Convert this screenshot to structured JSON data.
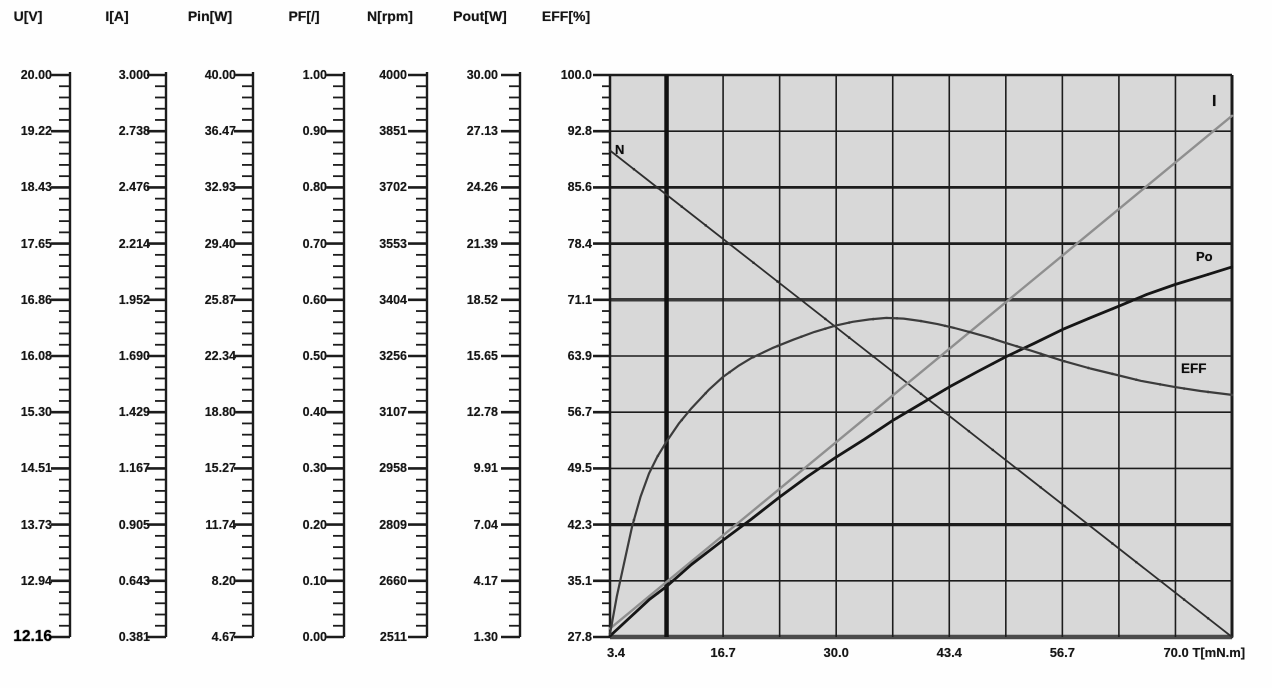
{
  "header_labels": [
    "U[V]",
    "I[A]",
    "Pin[W]",
    "PF[/]",
    "N[rpm]",
    "Pout[W]",
    "EFF[%]"
  ],
  "scales": [
    {
      "name": "U[V]",
      "ticks": [
        "20.00",
        "19.22",
        "18.43",
        "17.65",
        "16.86",
        "16.08",
        "15.30",
        "14.51",
        "13.73",
        "12.94",
        "12.16"
      ],
      "bold_last": true
    },
    {
      "name": "I[A]",
      "ticks": [
        "3.000",
        "2.738",
        "2.476",
        "2.214",
        "1.952",
        "1.690",
        "1.429",
        "1.167",
        "0.905",
        "0.643",
        "0.381"
      ],
      "bold_last": false
    },
    {
      "name": "Pin[W]",
      "ticks": [
        "40.00",
        "36.47",
        "32.93",
        "29.40",
        "25.87",
        "22.34",
        "18.80",
        "15.27",
        "11.74",
        "8.20",
        "4.67"
      ],
      "bold_last": false
    },
    {
      "name": "PF[/]",
      "ticks": [
        "1.00",
        "0.90",
        "0.80",
        "0.70",
        "0.60",
        "0.50",
        "0.40",
        "0.30",
        "0.20",
        "0.10",
        "0.00"
      ],
      "bold_last": false
    },
    {
      "name": "N[rpm]",
      "ticks": [
        "4000",
        "3851",
        "3702",
        "3553",
        "3404",
        "3256",
        "3107",
        "2958",
        "2809",
        "2660",
        "2511"
      ],
      "bold_last": false
    },
    {
      "name": "Pout[W]",
      "ticks": [
        "30.00",
        "27.13",
        "24.26",
        "21.39",
        "18.52",
        "15.65",
        "12.78",
        "9.91",
        "7.04",
        "4.17",
        "1.30"
      ],
      "bold_last": false
    },
    {
      "name": "EFF[%]",
      "ticks": [
        "100.0",
        "92.8",
        "85.6",
        "78.4",
        "71.1",
        "63.9",
        "56.7",
        "49.5",
        "42.3",
        "35.1",
        "27.8"
      ],
      "bold_last": false
    }
  ],
  "x_axis": {
    "tick_labels": [
      "3.4",
      "16.7",
      "30.0",
      "43.4",
      "56.7",
      "70.0"
    ],
    "unit_suffix": "T[mN.m]"
  },
  "supply_voltage_reading": "12.16",
  "chart_data": {
    "type": "line",
    "xlabel": "T[mN.m]",
    "x_range": [
      3.4,
      76.7
    ],
    "x_tick_values": [
      3.4,
      16.7,
      30.0,
      43.4,
      56.7,
      70.0
    ],
    "grid": true,
    "plot_bg": "#d8d8d8",
    "grid_color": "#1c1c1c",
    "series": [
      {
        "name": "N",
        "unit": "rpm",
        "axis_range": [
          2511,
          4000
        ],
        "color": "#2e2e2e",
        "width": 1.8,
        "markers": true,
        "points": [
          [
            3.4,
            3800
          ],
          [
            76.7,
            2511
          ]
        ]
      },
      {
        "name": "I",
        "unit": "A",
        "axis_range": [
          0.381,
          3.0
        ],
        "color": "#8f8f8f",
        "width": 2.4,
        "markers": false,
        "points": [
          [
            3.4,
            0.42
          ],
          [
            76.7,
            2.81
          ]
        ]
      },
      {
        "name": "Po",
        "unit": "W",
        "axis_range": [
          1.3,
          30.0
        ],
        "color": "#161616",
        "width": 2.8,
        "markers": true,
        "points": [
          [
            3.4,
            1.35
          ],
          [
            6,
            2.4
          ],
          [
            8,
            3.2
          ],
          [
            10,
            3.86
          ],
          [
            13,
            5.0
          ],
          [
            16.7,
            6.24
          ],
          [
            20,
            7.3
          ],
          [
            23.4,
            8.45
          ],
          [
            26.7,
            9.5
          ],
          [
            30,
            10.47
          ],
          [
            33.4,
            11.4
          ],
          [
            36.7,
            12.35
          ],
          [
            40,
            13.2
          ],
          [
            43.4,
            14.07
          ],
          [
            46.7,
            14.85
          ],
          [
            50,
            15.6
          ],
          [
            53.4,
            16.3
          ],
          [
            56.7,
            17.0
          ],
          [
            60,
            17.6
          ],
          [
            63.4,
            18.2
          ],
          [
            66.7,
            18.8
          ],
          [
            70,
            19.3
          ],
          [
            73.4,
            19.75
          ],
          [
            76.7,
            20.2
          ]
        ]
      },
      {
        "name": "EFF",
        "unit": "%",
        "axis_range": [
          27.8,
          100.0
        ],
        "color": "#3c3c3c",
        "width": 2.2,
        "markers": true,
        "points": [
          [
            3.4,
            28.2
          ],
          [
            4.2,
            33
          ],
          [
            5,
            37
          ],
          [
            6,
            42
          ],
          [
            7,
            45.8
          ],
          [
            8,
            48.8
          ],
          [
            9,
            51
          ],
          [
            10,
            52.8
          ],
          [
            11.5,
            55.2
          ],
          [
            13,
            57.2
          ],
          [
            15,
            59.5
          ],
          [
            16.7,
            61.2
          ],
          [
            18.5,
            62.6
          ],
          [
            20,
            63.6
          ],
          [
            22.5,
            64.9
          ],
          [
            25,
            66
          ],
          [
            27.5,
            67
          ],
          [
            30,
            67.8
          ],
          [
            32,
            68.3
          ],
          [
            34,
            68.6
          ],
          [
            36,
            68.8
          ],
          [
            38,
            68.7
          ],
          [
            40,
            68.4
          ],
          [
            42,
            68.0
          ],
          [
            44,
            67.5
          ],
          [
            46,
            66.9
          ],
          [
            48,
            66.3
          ],
          [
            50,
            65.6
          ],
          [
            53,
            64.6
          ],
          [
            56.7,
            63.3
          ],
          [
            60,
            62.3
          ],
          [
            63.4,
            61.4
          ],
          [
            66,
            60.7
          ],
          [
            70,
            59.9
          ],
          [
            73,
            59.4
          ],
          [
            76.7,
            58.9
          ]
        ]
      }
    ]
  }
}
